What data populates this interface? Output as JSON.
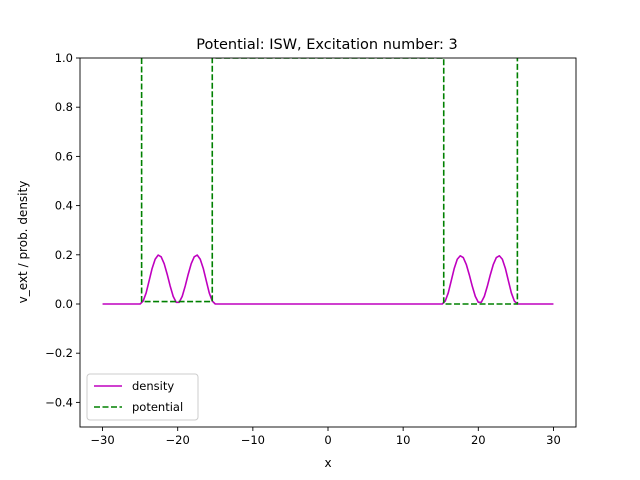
{
  "chart_data": {
    "type": "line",
    "title": "Potential: ISW, Excitation number: 3",
    "xlabel": "x",
    "ylabel": "v_ext / prob. density",
    "xlim": [
      -33,
      33
    ],
    "ylim": [
      -0.5,
      1.0
    ],
    "xticks": [
      -30,
      -20,
      -10,
      0,
      10,
      20,
      30
    ],
    "yticks": [
      -0.4,
      -0.2,
      0.0,
      0.2,
      0.4,
      0.6,
      0.8,
      1.0
    ],
    "xtick_labels": [
      "−30",
      "−20",
      "−10",
      "0",
      "10",
      "20",
      "30"
    ],
    "ytick_labels": [
      "−0.4",
      "−0.2",
      "0.0",
      "0.2",
      "0.4",
      "0.6",
      "0.8",
      "1.0"
    ],
    "grid": false,
    "legend_position": "lower-left",
    "series": [
      {
        "name": "density",
        "color": "#bf00bf",
        "style": "solid",
        "x": [
          -30,
          -25.0,
          -24.6,
          -24.2,
          -23.8,
          -23.4,
          -23.0,
          -22.6,
          -22.2,
          -21.8,
          -21.4,
          -21.0,
          -20.6,
          -20.2,
          -19.8,
          -19.4,
          -19.0,
          -18.6,
          -18.2,
          -17.8,
          -17.4,
          -17.0,
          -16.6,
          -16.2,
          -15.8,
          -15.4,
          -15.0,
          15.2,
          15.6,
          16.0,
          16.4,
          16.8,
          17.2,
          17.6,
          18.0,
          18.4,
          18.8,
          19.2,
          19.6,
          20.0,
          20.4,
          20.8,
          21.2,
          21.6,
          22.0,
          22.4,
          22.8,
          23.2,
          23.6,
          24.0,
          24.4,
          24.8,
          25.2,
          30
        ],
        "y": [
          0.0,
          0.0,
          0.012,
          0.045,
          0.095,
          0.145,
          0.182,
          0.199,
          0.192,
          0.164,
          0.121,
          0.073,
          0.031,
          0.007,
          0.007,
          0.031,
          0.073,
          0.121,
          0.164,
          0.192,
          0.199,
          0.182,
          0.145,
          0.095,
          0.045,
          0.012,
          0.0,
          0.0,
          0.012,
          0.045,
          0.095,
          0.145,
          0.182,
          0.196,
          0.189,
          0.161,
          0.119,
          0.072,
          0.031,
          0.007,
          0.007,
          0.031,
          0.072,
          0.119,
          0.161,
          0.189,
          0.196,
          0.182,
          0.145,
          0.095,
          0.045,
          0.012,
          0.0,
          0.0
        ]
      },
      {
        "name": "potential",
        "color": "#008000",
        "style": "dashed",
        "x": [
          -24.8,
          -24.8,
          -15.4,
          -15.4,
          15.4,
          15.4,
          25.2,
          25.2
        ],
        "y": [
          1.0,
          0.01,
          0.01,
          1.0,
          1.0,
          0.0,
          0.0,
          1.0
        ]
      }
    ]
  }
}
